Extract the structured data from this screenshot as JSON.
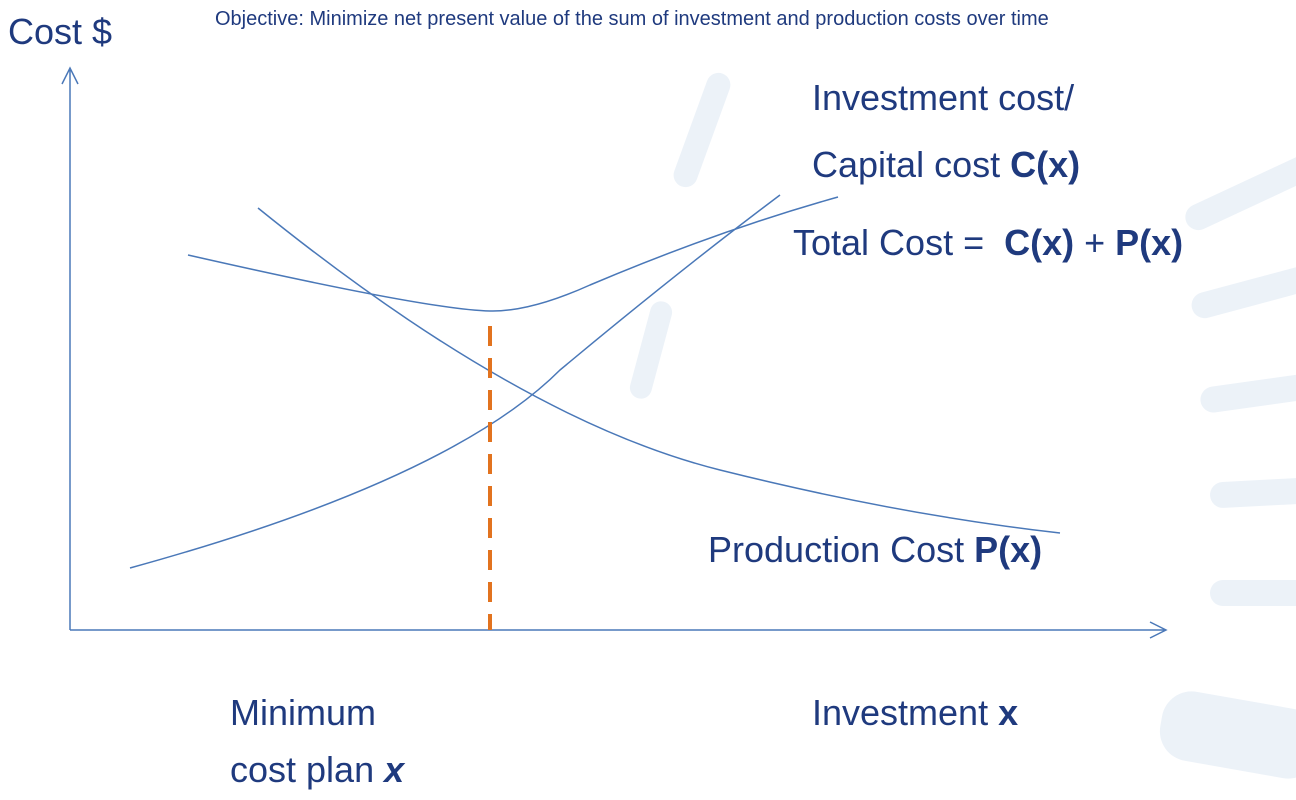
{
  "y_axis_label": "Cost $",
  "objective": "Objective: Minimize net present value of the sum of investment and production costs over time",
  "labels": {
    "capital_cost": {
      "line1": "Investment cost/",
      "line2": "Capital cost",
      "symbol": "C(x)"
    },
    "total_cost": {
      "text": "Total Cost =",
      "term1": "C(x)",
      "operator": "+",
      "term2": "P(x)"
    },
    "production_cost": {
      "text": "Production Cost",
      "symbol": "P(x)"
    },
    "x_axis_label": {
      "text": "Investment",
      "symbol": "x"
    },
    "minimum_plan": {
      "line1": "Minimum",
      "line2": "cost plan",
      "symbol": "x"
    }
  }
}
